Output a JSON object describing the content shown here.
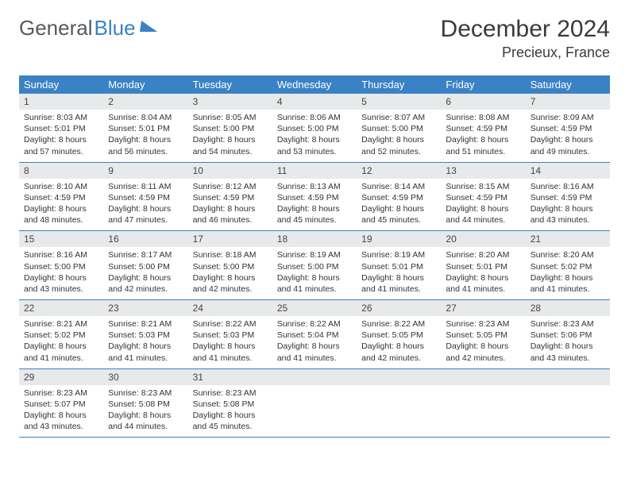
{
  "brand": {
    "part1": "General",
    "part2": "Blue"
  },
  "title": "December 2024",
  "location": "Precieux, France",
  "colors": {
    "header_bg": "#3b82c4",
    "header_text": "#ffffff",
    "daynum_bg": "#e8e9ea",
    "border": "#3b82c4",
    "text": "#333333"
  },
  "day_names": [
    "Sunday",
    "Monday",
    "Tuesday",
    "Wednesday",
    "Thursday",
    "Friday",
    "Saturday"
  ],
  "weeks": [
    [
      {
        "n": "1",
        "sr": "Sunrise: 8:03 AM",
        "ss": "Sunset: 5:01 PM",
        "dl": "Daylight: 8 hours and 57 minutes."
      },
      {
        "n": "2",
        "sr": "Sunrise: 8:04 AM",
        "ss": "Sunset: 5:01 PM",
        "dl": "Daylight: 8 hours and 56 minutes."
      },
      {
        "n": "3",
        "sr": "Sunrise: 8:05 AM",
        "ss": "Sunset: 5:00 PM",
        "dl": "Daylight: 8 hours and 54 minutes."
      },
      {
        "n": "4",
        "sr": "Sunrise: 8:06 AM",
        "ss": "Sunset: 5:00 PM",
        "dl": "Daylight: 8 hours and 53 minutes."
      },
      {
        "n": "5",
        "sr": "Sunrise: 8:07 AM",
        "ss": "Sunset: 5:00 PM",
        "dl": "Daylight: 8 hours and 52 minutes."
      },
      {
        "n": "6",
        "sr": "Sunrise: 8:08 AM",
        "ss": "Sunset: 4:59 PM",
        "dl": "Daylight: 8 hours and 51 minutes."
      },
      {
        "n": "7",
        "sr": "Sunrise: 8:09 AM",
        "ss": "Sunset: 4:59 PM",
        "dl": "Daylight: 8 hours and 49 minutes."
      }
    ],
    [
      {
        "n": "8",
        "sr": "Sunrise: 8:10 AM",
        "ss": "Sunset: 4:59 PM",
        "dl": "Daylight: 8 hours and 48 minutes."
      },
      {
        "n": "9",
        "sr": "Sunrise: 8:11 AM",
        "ss": "Sunset: 4:59 PM",
        "dl": "Daylight: 8 hours and 47 minutes."
      },
      {
        "n": "10",
        "sr": "Sunrise: 8:12 AM",
        "ss": "Sunset: 4:59 PM",
        "dl": "Daylight: 8 hours and 46 minutes."
      },
      {
        "n": "11",
        "sr": "Sunrise: 8:13 AM",
        "ss": "Sunset: 4:59 PM",
        "dl": "Daylight: 8 hours and 45 minutes."
      },
      {
        "n": "12",
        "sr": "Sunrise: 8:14 AM",
        "ss": "Sunset: 4:59 PM",
        "dl": "Daylight: 8 hours and 45 minutes."
      },
      {
        "n": "13",
        "sr": "Sunrise: 8:15 AM",
        "ss": "Sunset: 4:59 PM",
        "dl": "Daylight: 8 hours and 44 minutes."
      },
      {
        "n": "14",
        "sr": "Sunrise: 8:16 AM",
        "ss": "Sunset: 4:59 PM",
        "dl": "Daylight: 8 hours and 43 minutes."
      }
    ],
    [
      {
        "n": "15",
        "sr": "Sunrise: 8:16 AM",
        "ss": "Sunset: 5:00 PM",
        "dl": "Daylight: 8 hours and 43 minutes."
      },
      {
        "n": "16",
        "sr": "Sunrise: 8:17 AM",
        "ss": "Sunset: 5:00 PM",
        "dl": "Daylight: 8 hours and 42 minutes."
      },
      {
        "n": "17",
        "sr": "Sunrise: 8:18 AM",
        "ss": "Sunset: 5:00 PM",
        "dl": "Daylight: 8 hours and 42 minutes."
      },
      {
        "n": "18",
        "sr": "Sunrise: 8:19 AM",
        "ss": "Sunset: 5:00 PM",
        "dl": "Daylight: 8 hours and 41 minutes."
      },
      {
        "n": "19",
        "sr": "Sunrise: 8:19 AM",
        "ss": "Sunset: 5:01 PM",
        "dl": "Daylight: 8 hours and 41 minutes."
      },
      {
        "n": "20",
        "sr": "Sunrise: 8:20 AM",
        "ss": "Sunset: 5:01 PM",
        "dl": "Daylight: 8 hours and 41 minutes."
      },
      {
        "n": "21",
        "sr": "Sunrise: 8:20 AM",
        "ss": "Sunset: 5:02 PM",
        "dl": "Daylight: 8 hours and 41 minutes."
      }
    ],
    [
      {
        "n": "22",
        "sr": "Sunrise: 8:21 AM",
        "ss": "Sunset: 5:02 PM",
        "dl": "Daylight: 8 hours and 41 minutes."
      },
      {
        "n": "23",
        "sr": "Sunrise: 8:21 AM",
        "ss": "Sunset: 5:03 PM",
        "dl": "Daylight: 8 hours and 41 minutes."
      },
      {
        "n": "24",
        "sr": "Sunrise: 8:22 AM",
        "ss": "Sunset: 5:03 PM",
        "dl": "Daylight: 8 hours and 41 minutes."
      },
      {
        "n": "25",
        "sr": "Sunrise: 8:22 AM",
        "ss": "Sunset: 5:04 PM",
        "dl": "Daylight: 8 hours and 41 minutes."
      },
      {
        "n": "26",
        "sr": "Sunrise: 8:22 AM",
        "ss": "Sunset: 5:05 PM",
        "dl": "Daylight: 8 hours and 42 minutes."
      },
      {
        "n": "27",
        "sr": "Sunrise: 8:23 AM",
        "ss": "Sunset: 5:05 PM",
        "dl": "Daylight: 8 hours and 42 minutes."
      },
      {
        "n": "28",
        "sr": "Sunrise: 8:23 AM",
        "ss": "Sunset: 5:06 PM",
        "dl": "Daylight: 8 hours and 43 minutes."
      }
    ],
    [
      {
        "n": "29",
        "sr": "Sunrise: 8:23 AM",
        "ss": "Sunset: 5:07 PM",
        "dl": "Daylight: 8 hours and 43 minutes."
      },
      {
        "n": "30",
        "sr": "Sunrise: 8:23 AM",
        "ss": "Sunset: 5:08 PM",
        "dl": "Daylight: 8 hours and 44 minutes."
      },
      {
        "n": "31",
        "sr": "Sunrise: 8:23 AM",
        "ss": "Sunset: 5:08 PM",
        "dl": "Daylight: 8 hours and 45 minutes."
      },
      {
        "empty": true
      },
      {
        "empty": true
      },
      {
        "empty": true
      },
      {
        "empty": true
      }
    ]
  ]
}
